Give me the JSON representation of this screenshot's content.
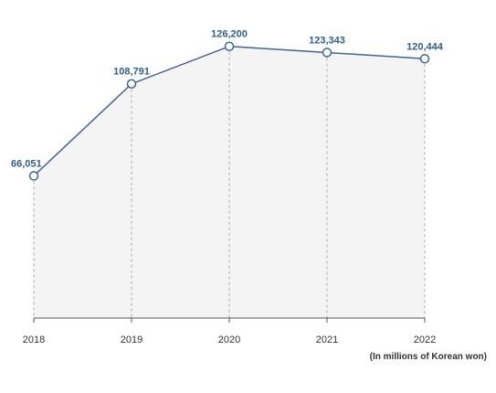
{
  "chart_data": {
    "type": "area",
    "x": [
      "2018",
      "2019",
      "2020",
      "2021",
      "2022"
    ],
    "series": [
      {
        "values": [
          66051,
          108791,
          126200,
          123343,
          120444
        ],
        "labels": [
          "66,051",
          "108,791",
          "126,200",
          "123,343",
          "120,444"
        ]
      }
    ],
    "ylim": [
      0,
      135000
    ],
    "grid": false,
    "unit_note": "(In millions of Korean won)",
    "colors": {
      "line": "#3d6596",
      "fill": "#f4f4f4",
      "marker_fill": "#ffffff",
      "label": "#2f5d8c",
      "drop_line": "#aaaaaa",
      "axis": "#555555",
      "tick_label": "#333333"
    }
  }
}
